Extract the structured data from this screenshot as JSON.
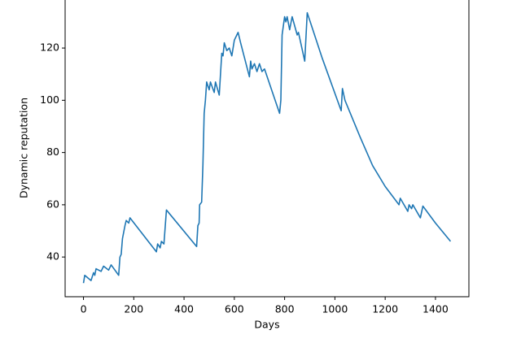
{
  "chart_data": {
    "type": "line",
    "xlabel": "Days",
    "ylabel": "Dynamic reputation",
    "x": [
      0,
      5,
      30,
      40,
      45,
      50,
      70,
      80,
      100,
      110,
      140,
      145,
      150,
      155,
      165,
      170,
      180,
      185,
      290,
      295,
      305,
      310,
      320,
      330,
      450,
      455,
      460,
      462,
      470,
      475,
      480,
      485,
      490,
      500,
      505,
      520,
      525,
      540,
      545,
      550,
      555,
      560,
      570,
      580,
      590,
      600,
      610,
      615,
      625,
      660,
      665,
      670,
      680,
      690,
      700,
      710,
      720,
      780,
      785,
      790,
      800,
      805,
      810,
      820,
      830,
      850,
      855,
      880,
      890,
      950,
      1025,
      1030,
      1040,
      1100,
      1150,
      1200,
      1255,
      1260,
      1290,
      1295,
      1305,
      1310,
      1340,
      1350,
      1400,
      1460
    ],
    "series": [
      {
        "color": "#1f77b4",
        "values": [
          30,
          33,
          31,
          34,
          33,
          35.5,
          34.5,
          36.5,
          35,
          37,
          33,
          40,
          41,
          47,
          52,
          54,
          53,
          55,
          42,
          45,
          43.5,
          46,
          45,
          58,
          44,
          52,
          53,
          60,
          61,
          75,
          95,
          100,
          107,
          104,
          107,
          103,
          107,
          102,
          110,
          118,
          117,
          122,
          119,
          120,
          117,
          123,
          125,
          126,
          122,
          109,
          115,
          112,
          114,
          111,
          114,
          111,
          112,
          95,
          100,
          125,
          132,
          130,
          132,
          127,
          132,
          125,
          126,
          115,
          133.5,
          116,
          96,
          104.5,
          100,
          86,
          75,
          67,
          60,
          62.5,
          57.5,
          60,
          58.5,
          60,
          55,
          59.5,
          53,
          46
        ]
      }
    ],
    "xlim": [
      -73,
      1533
    ],
    "ylim": [
      24.8,
      138.7
    ],
    "xticks": [
      0,
      200,
      400,
      600,
      800,
      1000,
      1200,
      1400
    ],
    "yticks": [
      40,
      60,
      80,
      100,
      120
    ]
  }
}
